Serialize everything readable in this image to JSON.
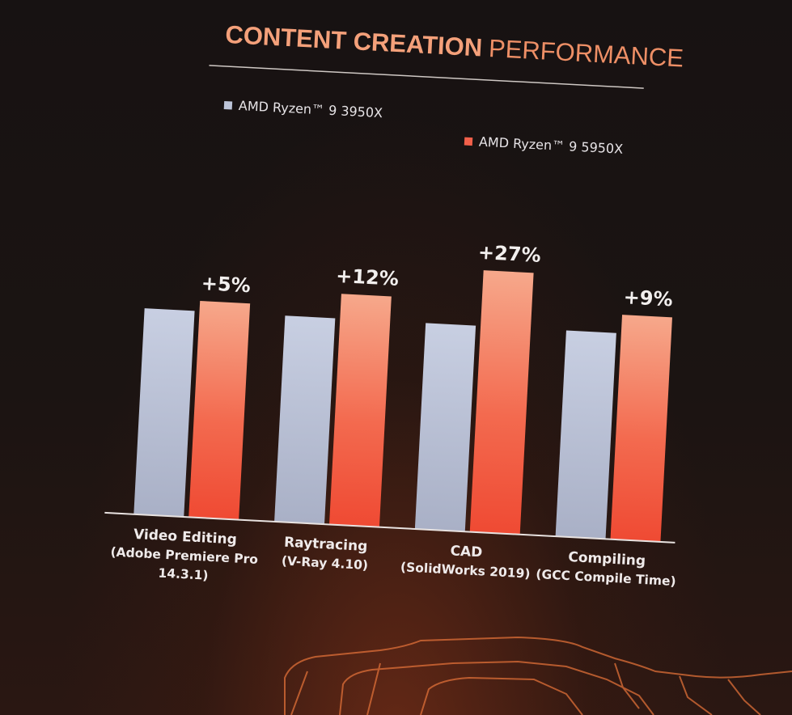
{
  "chart_data": {
    "type": "bar",
    "title": "CONTENT CREATION",
    "subtitle": "PERFORMANCE",
    "categories": [
      [
        "Video Editing",
        "(Adobe Premiere Pro",
        "14.3.1)"
      ],
      [
        "Raytracing",
        "(V-Ray 4.10)"
      ],
      [
        "CAD",
        "(SolidWorks 2019)"
      ],
      [
        "Compiling",
        "(GCC Compile Time)"
      ]
    ],
    "series": [
      {
        "name": "AMD Ryzen™ 9 3950X",
        "color": "#bcc4d8",
        "values": [
          100,
          100,
          100,
          100
        ]
      },
      {
        "name": "AMD Ryzen™ 9 5950X",
        "color": "#f2604a",
        "values": [
          105,
          112,
          127,
          109
        ]
      }
    ],
    "data_labels": [
      "+5%",
      "+12%",
      "+27%",
      "+9%"
    ],
    "xlabel": "",
    "ylabel": "",
    "grid": false,
    "legend": "top"
  }
}
